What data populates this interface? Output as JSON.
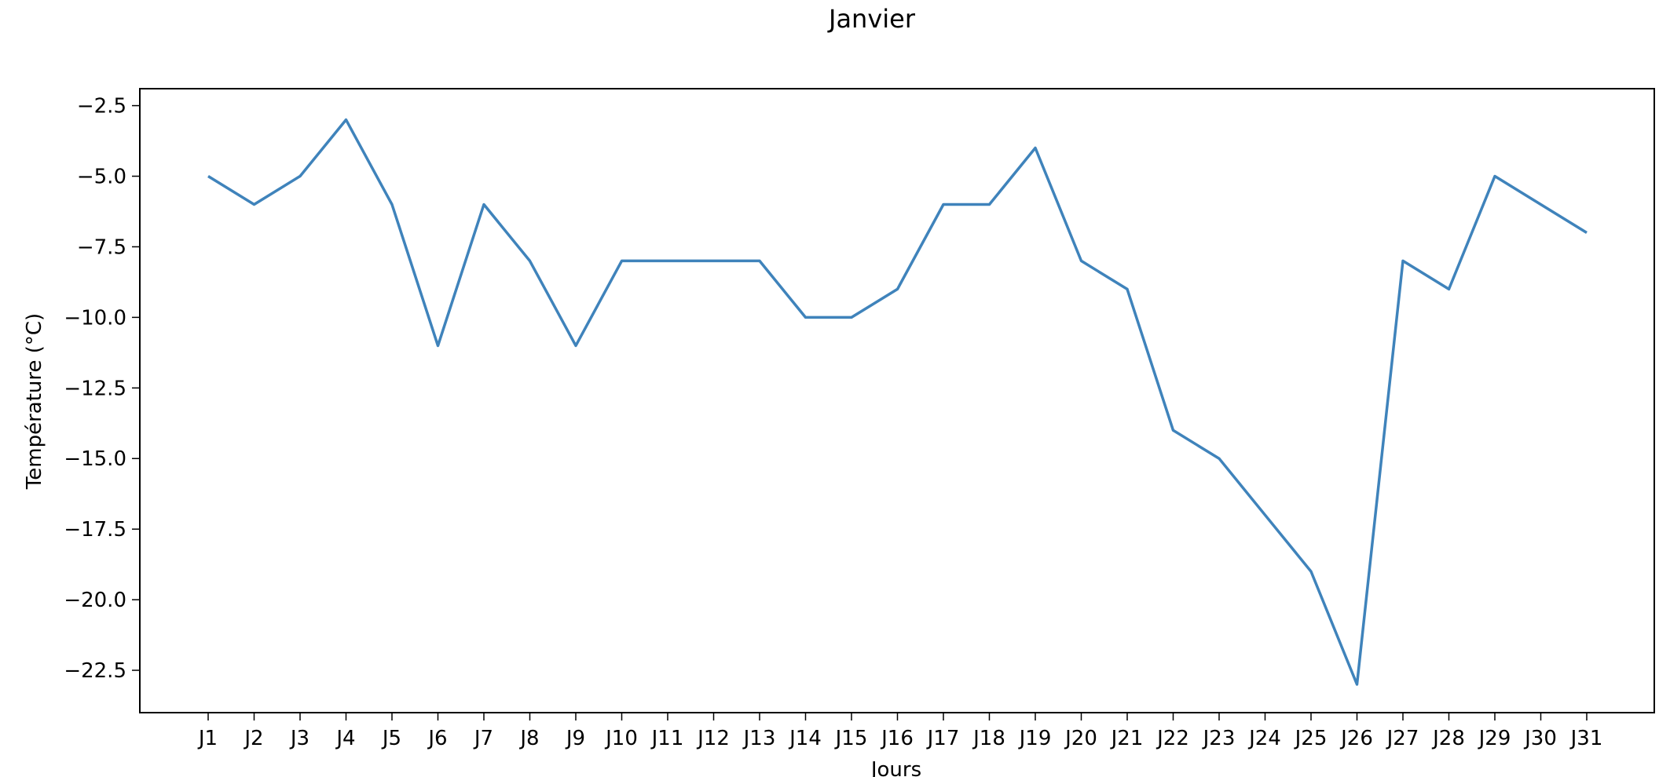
{
  "chart_data": {
    "type": "line",
    "title": "Janvier",
    "xlabel": "Jours",
    "ylabel": "Température (°C)",
    "categories": [
      "J1",
      "J2",
      "J3",
      "J4",
      "J5",
      "J6",
      "J7",
      "J8",
      "J9",
      "J10",
      "J11",
      "J12",
      "J13",
      "J14",
      "J15",
      "J16",
      "J17",
      "J18",
      "J19",
      "J20",
      "J21",
      "J22",
      "J23",
      "J24",
      "J25",
      "J26",
      "J27",
      "J28",
      "J29",
      "J30",
      "J31"
    ],
    "series": [
      {
        "values": [
          -5,
          -6,
          -5,
          -3,
          -6,
          -11,
          -6,
          -8,
          -11,
          -8,
          -8,
          -8,
          -8,
          -10,
          -10,
          -9,
          -6,
          -6,
          -4,
          -8,
          -9,
          -14,
          -15,
          -17,
          -19,
          -23,
          -8,
          -9,
          -5,
          -6,
          -7
        ],
        "color": "#3f83bb"
      }
    ],
    "ylim": [
      -24.0,
      -1.9
    ],
    "yticks": [
      -22.5,
      -20.0,
      -17.5,
      -15.0,
      -12.5,
      -10.0,
      -7.5,
      -5.0,
      -2.5
    ],
    "ytick_labels": [
      "−22.5",
      "−20.0",
      "−17.5",
      "−15.0",
      "−12.5",
      "−10.0",
      "−7.5",
      "−5.0",
      "−2.5"
    ],
    "grid": false,
    "legend": false
  }
}
